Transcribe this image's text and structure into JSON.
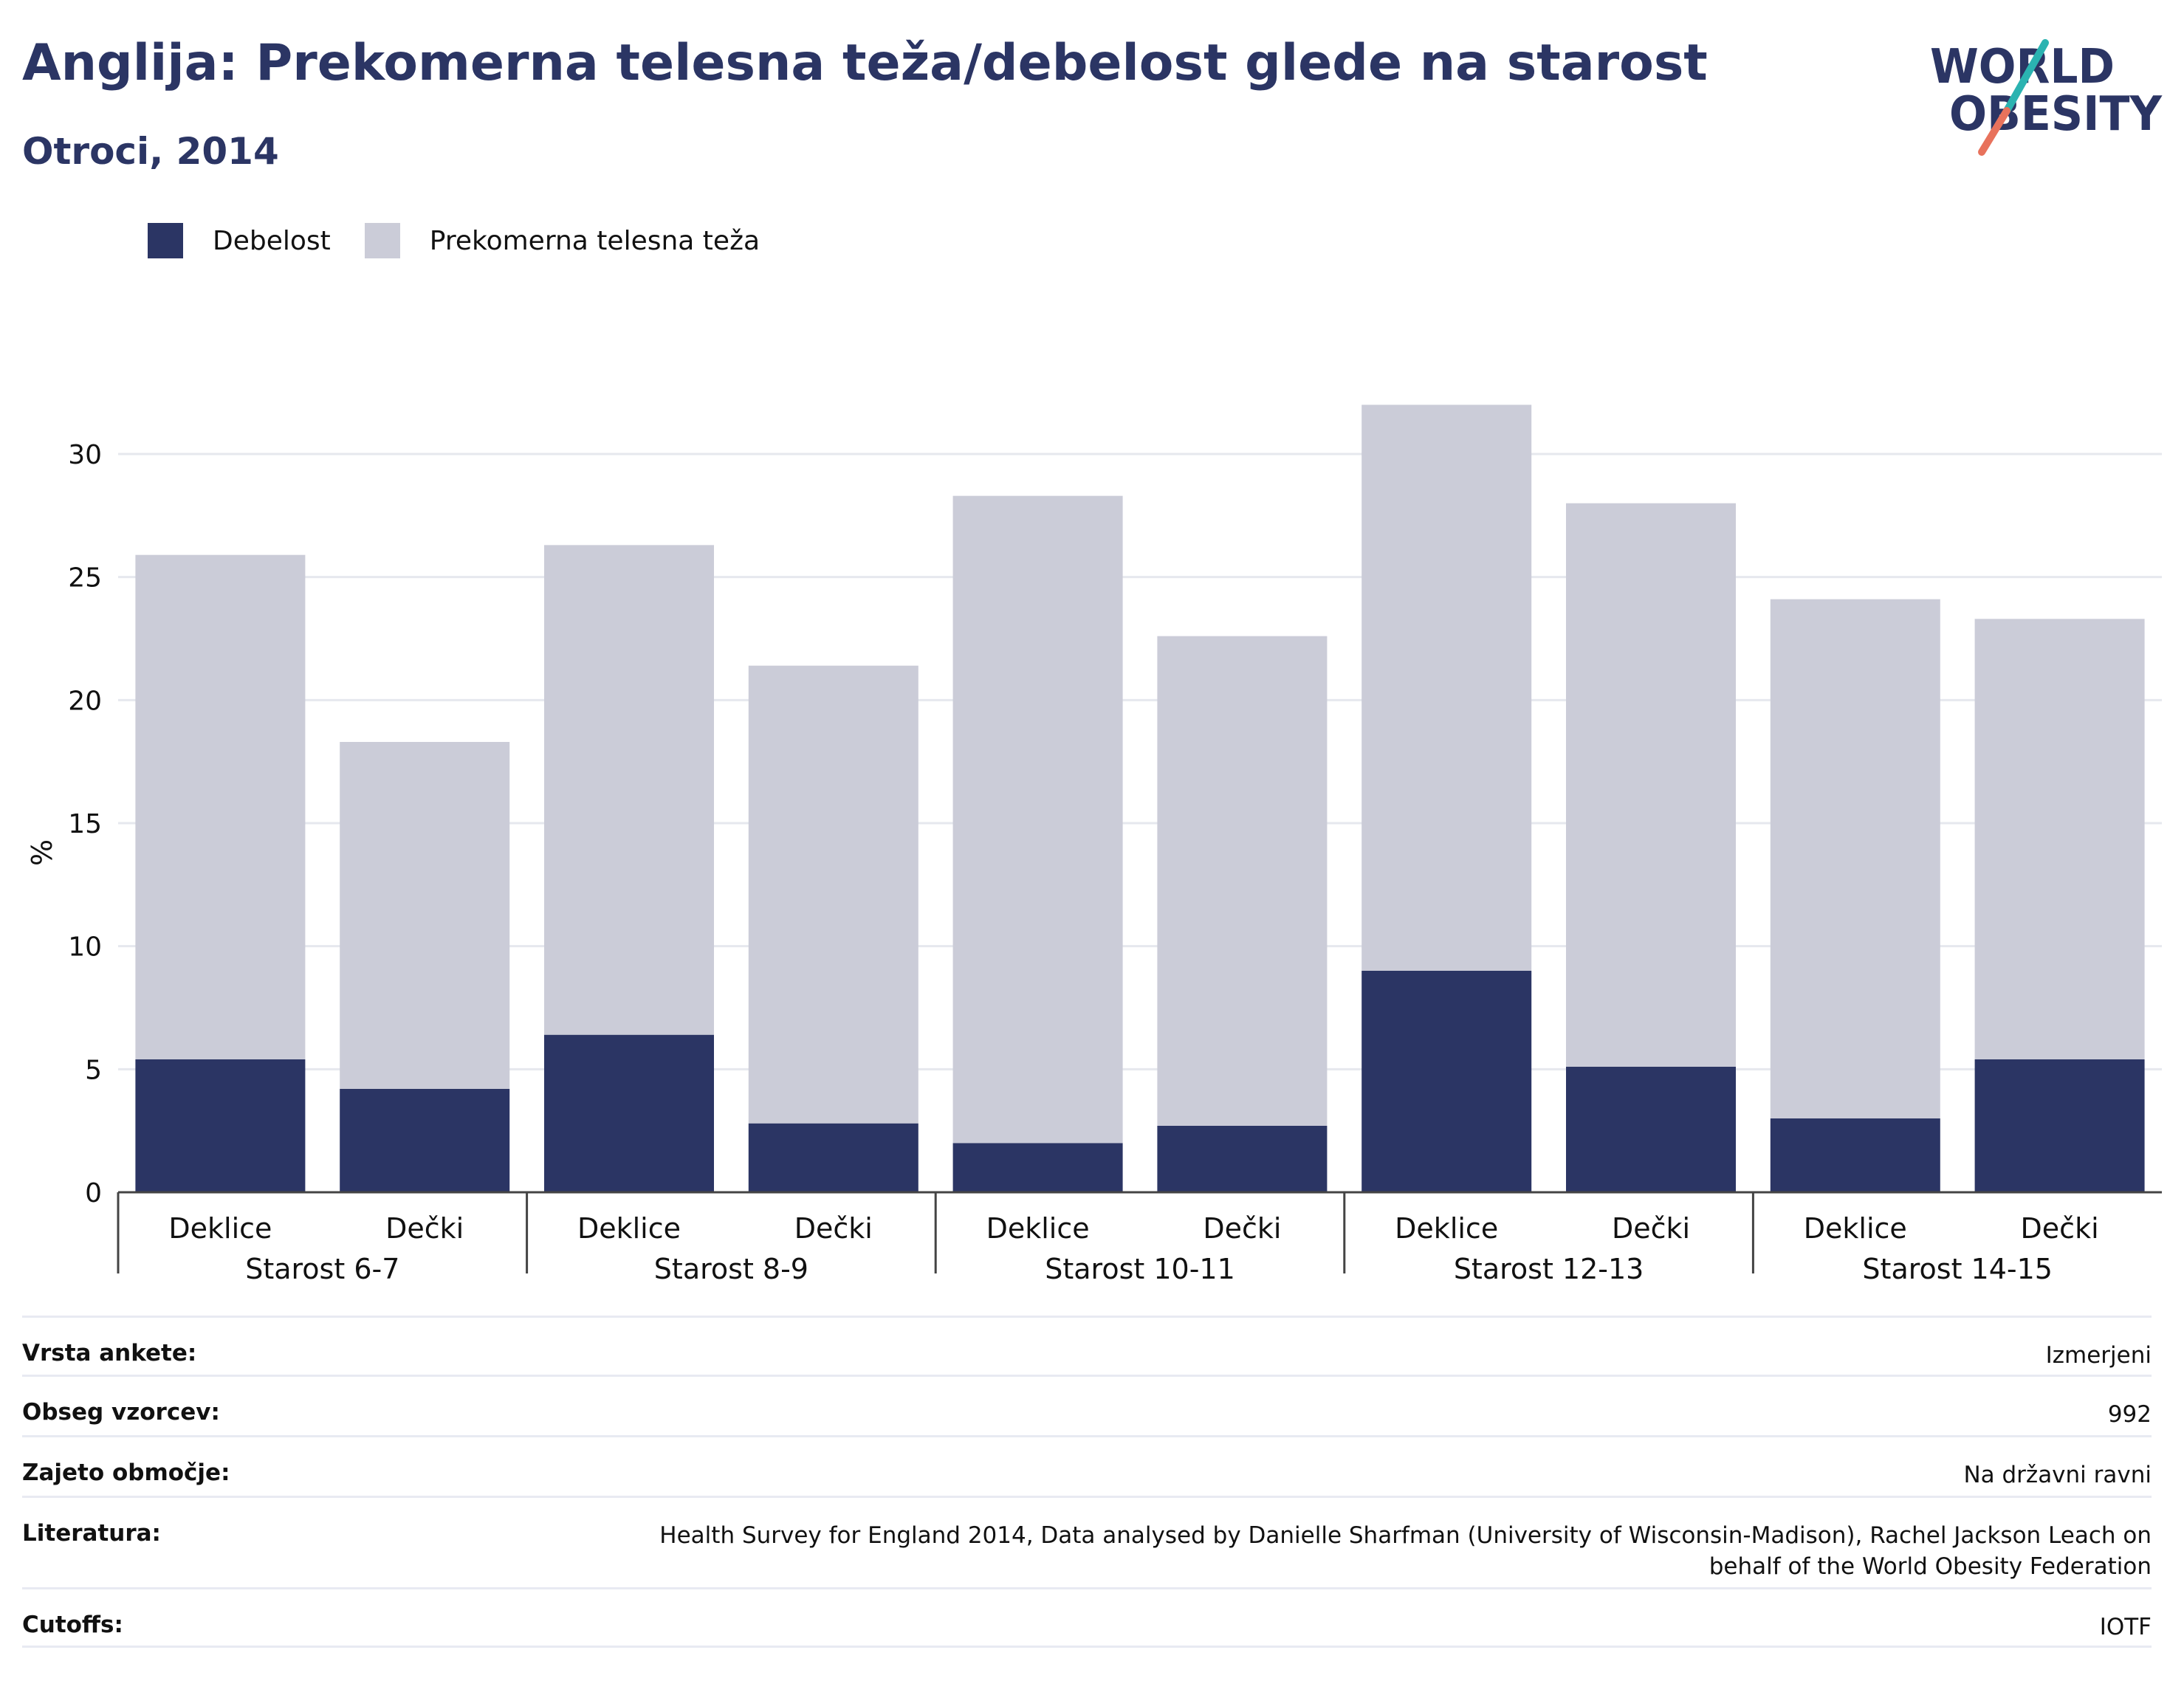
{
  "header": {
    "title": "Anglija: Prekomerna telesna teža/debelost glede na starost",
    "subtitle": "Otroci, 2014"
  },
  "logo": {
    "line1": "WORLD",
    "line2": "OBESITY",
    "accent_teal": "#2bb3b1",
    "accent_coral": "#e8725c",
    "color": "#2b3564"
  },
  "legend": [
    {
      "label": "Debelost",
      "color": "#2b3564"
    },
    {
      "label": "Prekomerna telesna teža",
      "color": "#cbccd8"
    }
  ],
  "chart_data": {
    "type": "bar",
    "stacked": true,
    "ylabel": "%",
    "ylim": [
      0,
      32
    ],
    "yticks": [
      0,
      5,
      10,
      15,
      20,
      25,
      30
    ],
    "grid": true,
    "legend_position": "top-left",
    "groups": [
      "Starost 6-7",
      "Starost 8-9",
      "Starost 10-11",
      "Starost 12-13",
      "Starost 14-15"
    ],
    "categories": [
      "Deklice",
      "Dečki",
      "Deklice",
      "Dečki",
      "Deklice",
      "Dečki",
      "Deklice",
      "Dečki",
      "Deklice",
      "Dečki"
    ],
    "series": [
      {
        "name": "Debelost",
        "color": "#2b3564",
        "values": [
          5.4,
          4.2,
          6.4,
          2.8,
          2.0,
          2.7,
          9.0,
          5.1,
          3.0,
          5.4
        ]
      },
      {
        "name": "Prekomerna telesna teža",
        "color": "#cbccd8",
        "values": [
          20.5,
          14.1,
          19.9,
          18.6,
          26.3,
          19.9,
          23.0,
          22.9,
          21.1,
          17.9
        ]
      }
    ],
    "totals": [
      25.9,
      18.3,
      26.3,
      21.4,
      28.3,
      22.6,
      32.0,
      28.0,
      24.1,
      23.3
    ]
  },
  "meta": [
    {
      "key": "Vrsta ankete:",
      "value": "Izmerjeni"
    },
    {
      "key": "Obseg vzorcev:",
      "value": "992"
    },
    {
      "key": "Zajeto območje:",
      "value": "Na državni ravni"
    },
    {
      "key": "Literatura:",
      "value": "Health Survey for England 2014, Data analysed by Danielle Sharfman (University of Wisconsin-Madison), Rachel Jackson Leach on behalf of the World Obesity Federation"
    },
    {
      "key": "Cutoffs:",
      "value": "IOTF"
    }
  ]
}
